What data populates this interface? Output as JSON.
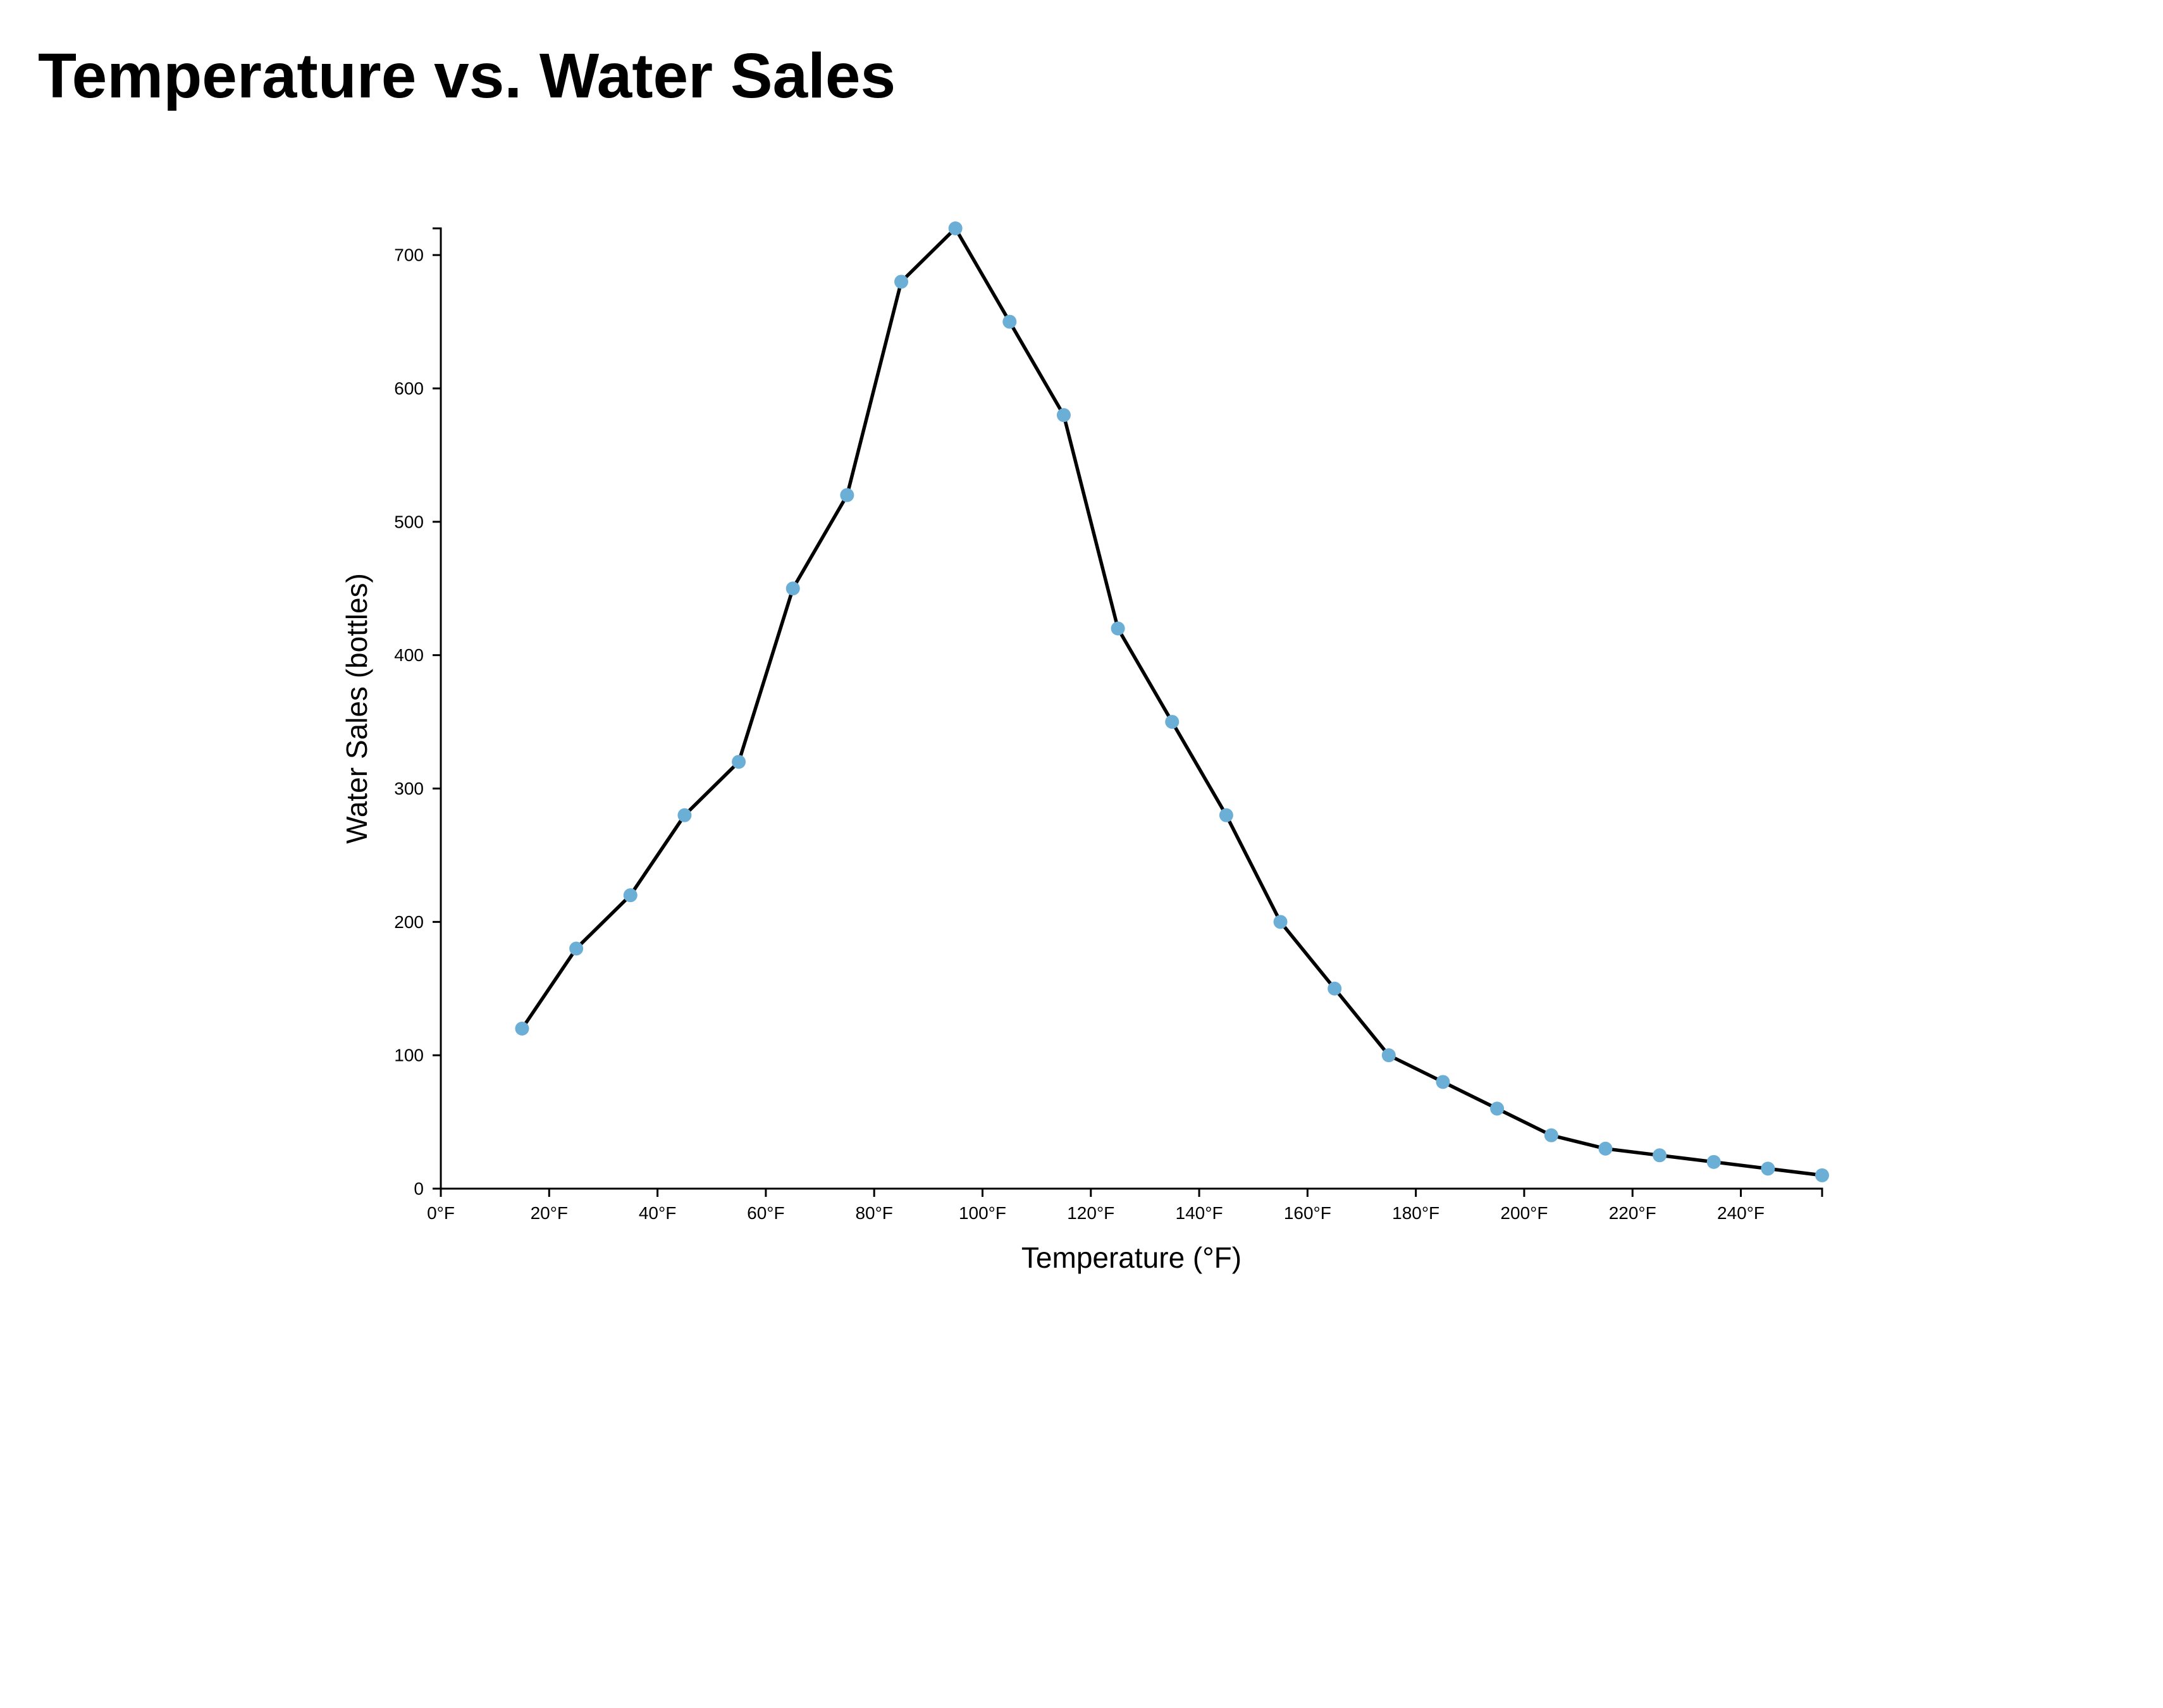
{
  "page": {
    "title": "Temperature vs. Water Sales"
  },
  "chart_data": {
    "type": "line",
    "title": "Temperature vs. Water Sales",
    "xlabel": "Temperature (°F)",
    "ylabel": "Water Sales (bottles)",
    "x_unit_suffix": "°F",
    "xlim": [
      0,
      255
    ],
    "ylim": [
      0,
      720
    ],
    "x_ticks": [
      0,
      20,
      40,
      60,
      80,
      100,
      120,
      140,
      160,
      180,
      200,
      220,
      240
    ],
    "y_ticks": [
      0,
      100,
      200,
      300,
      400,
      500,
      600,
      700
    ],
    "grid": false,
    "legend": "none",
    "colors": {
      "line": "#000000",
      "point": "#6baed6"
    },
    "series": [
      {
        "x": [
          15,
          25,
          35,
          45,
          55,
          65,
          75,
          85,
          95,
          105,
          115,
          125,
          135,
          145,
          155,
          165,
          175,
          185,
          195,
          205,
          215,
          225,
          235,
          245,
          255
        ],
        "values": [
          120,
          180,
          220,
          280,
          320,
          450,
          520,
          680,
          720,
          650,
          580,
          420,
          350,
          280,
          200,
          150,
          100,
          80,
          60,
          40,
          30,
          25,
          20,
          15,
          10
        ]
      }
    ]
  }
}
